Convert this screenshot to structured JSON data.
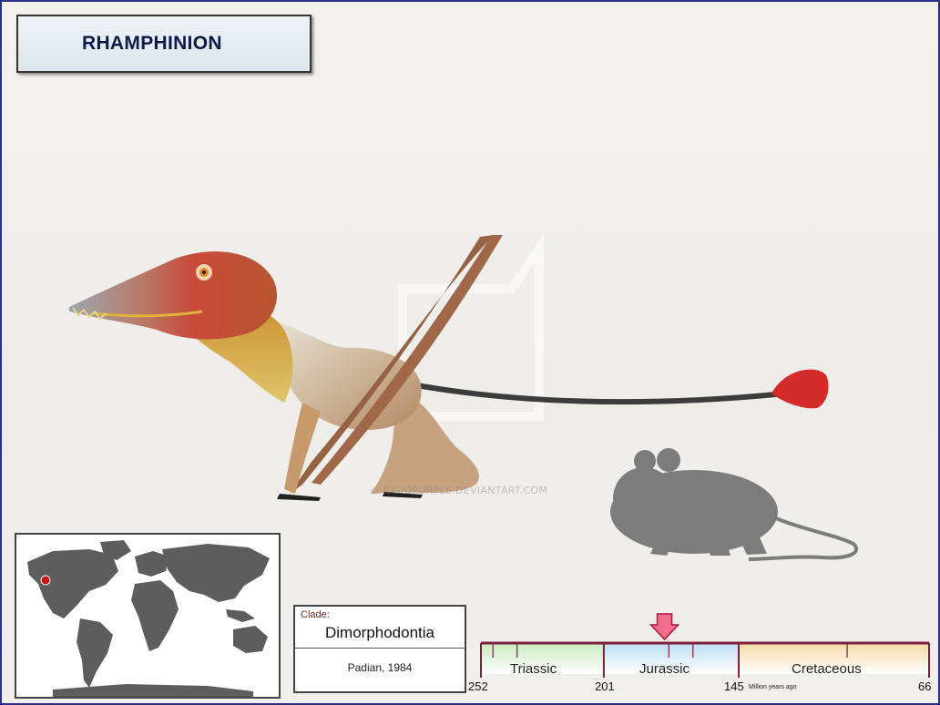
{
  "title": "RHAMPHINION",
  "watermark": "© CISIOPURPLE.DEVIANTART.COM",
  "clade": {
    "label": "Clade:",
    "name": "Dimorphodontia",
    "author": "Padian, 1984"
  },
  "timeline": {
    "periods": [
      {
        "name": "Triassic",
        "start": 252,
        "end": 201,
        "color": "#c8ebc0"
      },
      {
        "name": "Jurassic",
        "start": 201,
        "end": 145,
        "color": "#bcdcf0"
      },
      {
        "name": "Cretaceous",
        "start": 145,
        "end": 66,
        "color": "#f6d9a6"
      }
    ],
    "ticks": [
      "252",
      "201",
      "145",
      "66"
    ],
    "unit_label": "Million years ago",
    "marker_fraction_of_jurassic": 0.45,
    "marker_color": "#f26e8f",
    "border_color": "#7a1f3d"
  },
  "map": {
    "icon": "world-map-icon",
    "location_marker_color": "#cc1111"
  },
  "colors": {
    "frame_border": "#2b2f8a",
    "title_text": "#0d1a4a"
  }
}
